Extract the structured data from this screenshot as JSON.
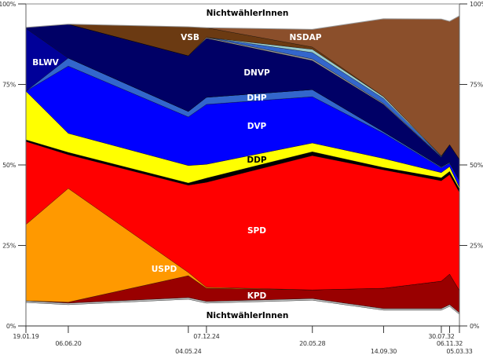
{
  "chart_data": {
    "type": "area",
    "stacked": true,
    "title": "",
    "xlabel": "",
    "ylabel": "",
    "ylim": [
      0,
      100
    ],
    "yticks": [
      "0%",
      "25%",
      "50%",
      "75%",
      "100%"
    ],
    "ytick_values": [
      0,
      25,
      50,
      75,
      100
    ],
    "x": [
      "19.01.19",
      "06.06.20",
      "04.05.24",
      "07.12.24",
      "20.05.28",
      "14.09.30",
      "30.07.32",
      "06.11.32",
      "05.03.33"
    ],
    "x_years": [
      1919.05,
      1920.43,
      1924.34,
      1924.93,
      1928.38,
      1930.7,
      1932.58,
      1932.85,
      1933.17
    ],
    "series": [
      {
        "name": "NichtwählerInnen",
        "color": "#ffffff",
        "values": [
          7.3,
          6.6,
          8.3,
          7.1,
          8.0,
          4.9,
          4.9,
          6.1,
          3.6
        ]
      },
      {
        "name": null,
        "color": "#c0c0c0",
        "values": [
          0.5,
          0.5,
          0.5,
          0.5,
          0.5,
          0.5,
          0.5,
          0.5,
          0.5
        ]
      },
      {
        "name": "KPD",
        "color": "#990000",
        "values": [
          0,
          0.3,
          6.8,
          4.1,
          2.7,
          6.3,
          8.5,
          9.5,
          6.9
        ]
      },
      {
        "name": "USPD",
        "color": "#ff9900",
        "values": [
          23.7,
          35.3,
          1.0,
          0.3,
          0,
          0,
          0,
          0,
          0
        ]
      },
      {
        "name": "SPD",
        "color": "#ff0000",
        "values": [
          25.8,
          10.5,
          27.1,
          32.6,
          41.7,
          36.8,
          31.2,
          30.9,
          30.5
        ]
      },
      {
        "name": null,
        "color": "#000000",
        "values": [
          0.5,
          0.7,
          0.7,
          1.3,
          1.2,
          0.7,
          0.9,
          1.0,
          1.0
        ]
      },
      {
        "name": "DDP",
        "color": "#ffff00",
        "values": [
          15.1,
          5.9,
          5.4,
          4.3,
          2.7,
          2.8,
          1.6,
          1.5,
          0.5
        ]
      },
      {
        "name": "DVP",
        "color": "#0000ff",
        "values": [
          0,
          20.9,
          15.1,
          18.6,
          14.4,
          7.8,
          1.5,
          1.0,
          2.0
        ]
      },
      {
        "name": "DHP",
        "color": "#3366cc",
        "values": [
          0,
          2.5,
          1.7,
          2.2,
          2.2,
          0.5,
          0.3,
          0.3,
          0.3
        ]
      },
      {
        "name": "BLWV",
        "color": "#000099",
        "values": [
          19.5,
          0,
          0,
          0,
          0,
          0,
          0,
          0,
          0
        ]
      },
      {
        "name": "DNVP",
        "color": "#000066",
        "values": [
          0.3,
          10.5,
          17.3,
          18.3,
          9.0,
          8.5,
          3.0,
          5.5,
          6.4
        ]
      },
      {
        "name": null,
        "color": "#999999",
        "values": [
          0,
          0,
          0,
          0.3,
          0.5,
          0.3,
          0.1,
          0,
          0
        ]
      },
      {
        "name": null,
        "color": "#3366cc",
        "values": [
          0,
          0,
          0,
          0,
          2.0,
          1.5,
          0.2,
          0,
          0
        ]
      },
      {
        "name": null,
        "color": "#99cccc",
        "values": [
          0,
          0,
          0,
          0,
          1.0,
          0.6,
          0.1,
          0,
          0
        ]
      },
      {
        "name": "VSB",
        "color": "#6b3a12",
        "values": [
          0,
          0,
          9.0,
          3.0,
          0.7,
          0,
          0,
          0,
          0
        ]
      },
      {
        "name": "NSDAP",
        "color": "#8b4f2b",
        "values": [
          0,
          0,
          0,
          0,
          5.5,
          24.2,
          42.5,
          38.3,
          44.6
        ]
      }
    ],
    "top_remainder": {
      "name": "NichtwählerInnen",
      "color": "#ffffff"
    },
    "grid": false,
    "legend": "inline labels"
  }
}
